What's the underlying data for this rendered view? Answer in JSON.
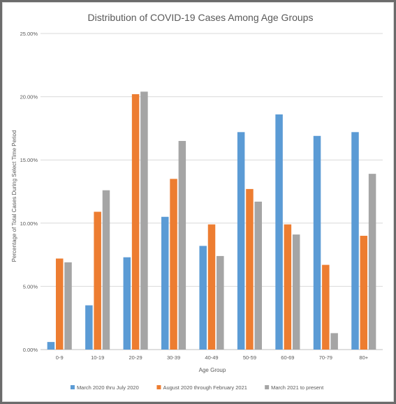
{
  "chart_data": {
    "type": "bar",
    "title": "Distribution of COVID-19 Cases Among Age Groups",
    "xlabel": "Age Group",
    "ylabel": "Percentage of Total Cases During Select Time Period",
    "ylim": [
      0,
      25
    ],
    "yticks": [
      "0.00%",
      "5.00%",
      "10.00%",
      "15.00%",
      "20.00%",
      "25.00%"
    ],
    "grid": true,
    "legend_position": "bottom",
    "categories": [
      "0-9",
      "10-19",
      "20-29",
      "30-39",
      "40-49",
      "50-59",
      "60-69",
      "70-79",
      "80+"
    ],
    "series": [
      {
        "name": "March 2020 thru July 2020",
        "color": "#5b9bd5",
        "values": [
          0.6,
          3.5,
          7.3,
          10.5,
          8.2,
          17.2,
          18.6,
          16.9,
          17.2
        ]
      },
      {
        "name": "August 2020 through February 2021",
        "color": "#ed7d31",
        "values": [
          7.2,
          10.9,
          20.2,
          13.5,
          9.9,
          12.7,
          9.9,
          6.7,
          9.0
        ]
      },
      {
        "name": "March 2021 to present",
        "color": "#a5a5a5",
        "values": [
          6.9,
          12.6,
          20.4,
          16.5,
          7.4,
          11.7,
          9.1,
          1.3,
          13.9
        ]
      }
    ]
  }
}
